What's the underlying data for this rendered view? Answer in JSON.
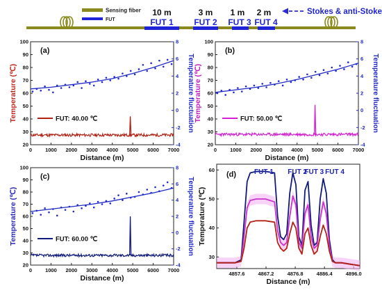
{
  "header": {
    "legend_sensing": "Sensing fiber",
    "legend_fut": "FUT",
    "stokes_label": "Stokes & anti-Stokes",
    "futs": [
      {
        "len": "10 m",
        "name": "FUT 1"
      },
      {
        "len": "3 m",
        "name": "FUT 2"
      },
      {
        "len": "1 m",
        "name": "FUT 3"
      },
      {
        "len": "2 m",
        "name": "FUT 4"
      }
    ],
    "colors": {
      "fiber": "#8a8a1e",
      "fut": "#1f24d6",
      "arrow": "#2a2ad8"
    }
  },
  "chart_data": [
    {
      "type": "line",
      "panel": "(a)",
      "xlabel": "Distance (m)",
      "ylabel": "Temperature (℃)",
      "y2label": "Temperature fluctuation",
      "xlim": [
        0,
        7000
      ],
      "ylim": [
        20,
        100
      ],
      "y2lim": [
        -4,
        8
      ],
      "xticks": [
        "0",
        "1000",
        "2000",
        "3000",
        "4000",
        "5000",
        "6000",
        "7000"
      ],
      "yticks": [
        "20",
        "30",
        "40",
        "50",
        "60",
        "70",
        "80",
        "90",
        "100"
      ],
      "y2ticks": [
        "-4",
        "-2",
        "0",
        "2",
        "4",
        "6",
        "8"
      ],
      "legend": "FUT: 40.00 ℃",
      "color": "#b22214",
      "axis_color": "#c0281c",
      "temp_baseline": 27.5,
      "spike_x": 4880,
      "spike_peak": 42,
      "fluct_series": {
        "name": "",
        "color": "#1f2ac8",
        "x": [
          100,
          300,
          500,
          700,
          900,
          1100,
          1300,
          1500,
          1700,
          1900,
          2100,
          2300,
          2500,
          2700,
          2900,
          3100,
          3300,
          3500,
          3700,
          3900,
          4100,
          4300,
          4500,
          4700,
          4900,
          5100,
          5300,
          5500,
          5700,
          5900,
          6100,
          6300,
          6500,
          6700,
          6900
        ],
        "y": [
          2.2,
          2.5,
          2.3,
          2.8,
          2.4,
          2.1,
          2.9,
          2.6,
          3.0,
          2.7,
          2.9,
          3.3,
          2.6,
          3.4,
          3.1,
          2.9,
          3.6,
          3.3,
          3.8,
          3.5,
          3.9,
          3.7,
          4.3,
          4.0,
          4.6,
          4.2,
          4.8,
          5.3,
          4.6,
          5.5,
          4.9,
          5.8,
          5.1,
          5.9,
          5.4
        ]
      },
      "fit": [
        [
          0,
          2.5
        ],
        [
          1000,
          2.7
        ],
        [
          2000,
          3.0
        ],
        [
          3000,
          3.3
        ],
        [
          4000,
          3.7
        ],
        [
          5000,
          4.3
        ],
        [
          6000,
          5.0
        ],
        [
          7000,
          5.8
        ]
      ]
    },
    {
      "type": "line",
      "panel": "(b)",
      "xlabel": "Distance (m)",
      "ylabel": "Temperature (℃)",
      "y2label": "Temperature fluctuation",
      "xlim": [
        0,
        7000
      ],
      "ylim": [
        20,
        100
      ],
      "y2lim": [
        -4,
        8
      ],
      "xticks": [
        "0",
        "1000",
        "2000",
        "3000",
        "4000",
        "5000",
        "6000",
        "7000"
      ],
      "yticks": [
        "20",
        "30",
        "40",
        "50",
        "60",
        "70",
        "80",
        "90",
        "100"
      ],
      "y2ticks": [
        "-4",
        "-2",
        "0",
        "2",
        "4",
        "6",
        "8"
      ],
      "legend": "FUT: 50.00 ℃",
      "color": "#d41fd4",
      "axis_color": "#c21cc2",
      "temp_baseline": 28,
      "spike_x": 4880,
      "spike_peak": 51,
      "fluct_series": {
        "name": "",
        "color": "#1f2ac8",
        "x": [
          100,
          300,
          500,
          700,
          900,
          1100,
          1300,
          1500,
          1700,
          1900,
          2100,
          2300,
          2500,
          2700,
          2900,
          3100,
          3300,
          3500,
          3700,
          3900,
          4100,
          4300,
          4500,
          4700,
          4900,
          5100,
          5300,
          5500,
          5700,
          5900,
          6100,
          6300,
          6500,
          6700,
          6900
        ],
        "y": [
          2.0,
          2.3,
          1.8,
          2.4,
          2.1,
          2.6,
          2.2,
          2.8,
          2.5,
          2.9,
          2.6,
          3.1,
          2.7,
          3.2,
          3.0,
          3.4,
          2.9,
          3.6,
          3.3,
          3.5,
          3.9,
          3.6,
          4.2,
          3.8,
          4.5,
          4.1,
          4.7,
          4.3,
          5.0,
          4.6,
          5.2,
          4.8,
          5.6,
          5.1,
          5.4
        ]
      },
      "fit": [
        [
          0,
          2.1
        ],
        [
          1000,
          2.4
        ],
        [
          2000,
          2.7
        ],
        [
          3000,
          3.1
        ],
        [
          4000,
          3.6
        ],
        [
          5000,
          4.2
        ],
        [
          6000,
          4.8
        ],
        [
          7000,
          5.5
        ]
      ]
    },
    {
      "type": "line",
      "panel": "(c)",
      "xlabel": "Distance (m)",
      "ylabel": "Temperature (℃)",
      "y2label": "Temperature fluctuation",
      "xlim": [
        0,
        7000
      ],
      "ylim": [
        20,
        100
      ],
      "y2lim": [
        -4,
        8
      ],
      "xticks": [
        "0",
        "1000",
        "2000",
        "3000",
        "4000",
        "5000",
        "6000",
        "7000"
      ],
      "yticks": [
        "20",
        "30",
        "40",
        "50",
        "60",
        "70",
        "80",
        "90",
        "100"
      ],
      "y2ticks": [
        "-4",
        "-2",
        "0",
        "2",
        "4",
        "6",
        "8"
      ],
      "legend": "FUT: 60.00 ℃",
      "color": "#0f1a7a",
      "axis_color": "#2a2ab8",
      "temp_baseline": 28,
      "spike_x": 4880,
      "spike_peak": 60,
      "fluct_series": {
        "name": "",
        "color": "#1f2ac8",
        "x": [
          100,
          300,
          500,
          700,
          900,
          1100,
          1300,
          1500,
          1700,
          1900,
          2100,
          2300,
          2500,
          2700,
          2900,
          3100,
          3300,
          3500,
          3700,
          3900,
          4100,
          4300,
          4500,
          4700,
          4900,
          5100,
          5300,
          5500,
          5700,
          5900,
          6100,
          6300,
          6500,
          6700,
          6900
        ],
        "y": [
          2.4,
          2.7,
          2.2,
          3.0,
          2.5,
          2.9,
          2.1,
          3.1,
          2.8,
          3.2,
          2.6,
          3.4,
          3.0,
          3.3,
          3.6,
          3.1,
          3.8,
          3.5,
          3.9,
          3.6,
          4.2,
          4.6,
          4.0,
          4.8,
          4.3,
          4.4,
          5.0,
          4.7,
          5.3,
          4.9,
          5.6,
          5.1,
          5.8,
          6.2,
          5.5
        ]
      },
      "fit": [
        [
          0,
          2.6
        ],
        [
          1000,
          2.9
        ],
        [
          2000,
          3.2
        ],
        [
          3000,
          3.5
        ],
        [
          4000,
          3.9
        ],
        [
          5000,
          4.4
        ],
        [
          6000,
          4.9
        ],
        [
          7000,
          5.5
        ]
      ]
    },
    {
      "type": "line",
      "panel": "(d)",
      "xlabel": "Distance (m)",
      "ylabel": "Temperature (℃)",
      "xlim": [
        4851,
        4898
      ],
      "ylim": [
        26,
        62
      ],
      "xticks": [
        4857.6,
        4867.2,
        4876.8,
        4886.4,
        4896.0
      ],
      "xticklabels": [
        "4857.6",
        "4867.2",
        "4876.8",
        "4886.4",
        "4896.0"
      ],
      "yticks": [
        "30",
        "40",
        "50",
        "60"
      ],
      "ytick_values": [
        30,
        40,
        50,
        60
      ],
      "annotations": [
        "FUT 1",
        "FUT 2",
        "FUT 3",
        "FUT 4"
      ],
      "series": [
        {
          "color": "#0f1a7a",
          "x": [
            4851,
            4854,
            4857,
            4859,
            4860,
            4861,
            4862,
            4864,
            4867,
            4870,
            4871,
            4872,
            4873,
            4874,
            4875,
            4876,
            4877,
            4878,
            4879,
            4880,
            4881,
            4882,
            4883,
            4884,
            4885,
            4886,
            4887,
            4888,
            4889,
            4890,
            4892,
            4895,
            4898
          ],
          "y": [
            28,
            28,
            28,
            29,
            42,
            56,
            59,
            59.5,
            59.5,
            59,
            44,
            37,
            36,
            38,
            52,
            59,
            55,
            37,
            34,
            53,
            56,
            41,
            34,
            35,
            50,
            57,
            52,
            36,
            29,
            28,
            28,
            27.5,
            27
          ]
        },
        {
          "color": "#cc33cc",
          "x": [
            4851,
            4854,
            4857,
            4859,
            4860,
            4861,
            4862,
            4864,
            4867,
            4870,
            4871,
            4872,
            4873,
            4874,
            4875,
            4876,
            4877,
            4878,
            4879,
            4880,
            4881,
            4882,
            4883,
            4884,
            4885,
            4886,
            4887,
            4888,
            4889,
            4890,
            4892,
            4895,
            4898
          ],
          "y": [
            28,
            28,
            28,
            28.5,
            37,
            47,
            49.5,
            50,
            50,
            49,
            39,
            35,
            34,
            35,
            44,
            51,
            48,
            35,
            33,
            45,
            48,
            37,
            33,
            34,
            43,
            49,
            45,
            34,
            28.5,
            28,
            28,
            27.5,
            27
          ]
        },
        {
          "color": "#b22214",
          "x": [
            4851,
            4854,
            4857,
            4859,
            4860,
            4861,
            4862,
            4864,
            4867,
            4870,
            4871,
            4872,
            4873,
            4874,
            4875,
            4876,
            4877,
            4878,
            4879,
            4880,
            4881,
            4882,
            4883,
            4884,
            4885,
            4886,
            4887,
            4888,
            4889,
            4890,
            4892,
            4895,
            4898
          ],
          "y": [
            28,
            28,
            28,
            28.5,
            33,
            40,
            42,
            42.5,
            42.5,
            42,
            35,
            33,
            32,
            33,
            38,
            42,
            40,
            33,
            31,
            38,
            40,
            34,
            31,
            32,
            37,
            41,
            38,
            32,
            28.5,
            28,
            28,
            27.5,
            27
          ]
        }
      ]
    }
  ]
}
